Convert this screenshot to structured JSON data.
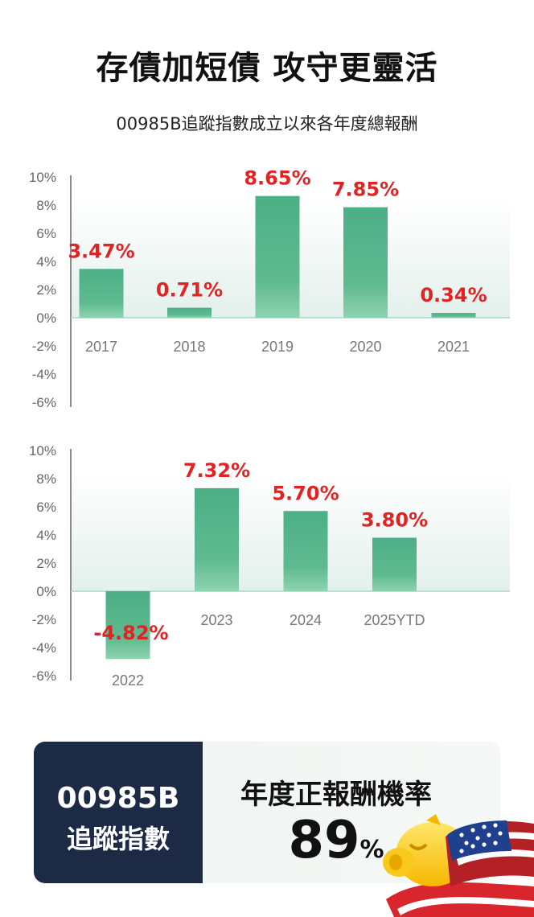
{
  "header": {
    "title": "存債加短債  攻守更靈活",
    "subtitle": "00985B追蹤指數成立以來各年度總報酬"
  },
  "chart_data": [
    {
      "type": "bar",
      "categories": [
        "2017",
        "2018",
        "2019",
        "2020",
        "2021"
      ],
      "values": [
        3.47,
        0.71,
        8.65,
        7.85,
        0.34
      ],
      "value_labels": [
        "3.47%",
        "0.71%",
        "8.65%",
        "7.85%",
        "0.34%"
      ],
      "y_ticks": [
        "10%",
        "8%",
        "6%",
        "4%",
        "2%",
        "0%",
        "-2%",
        "-4%",
        "-6%"
      ],
      "ylim": [
        -6,
        10
      ],
      "bar_color": "#4caf86",
      "label_color": "#e02424"
    },
    {
      "type": "bar",
      "categories": [
        "2022",
        "2023",
        "2024",
        "2025YTD"
      ],
      "values": [
        -4.82,
        7.32,
        5.7,
        3.8
      ],
      "value_labels": [
        "-4.82%",
        "7.32%",
        "5.70%",
        "3.80%"
      ],
      "y_ticks": [
        "10%",
        "8%",
        "6%",
        "4%",
        "2%",
        "0%",
        "-2%",
        "-4%",
        "-6%"
      ],
      "ylim": [
        -6,
        10
      ],
      "bar_color": "#4caf86",
      "label_color": "#e02424"
    }
  ],
  "summary": {
    "code": "00985B",
    "name": "追蹤指數",
    "label": "年度正報酬機率",
    "rate_value": "89",
    "rate_unit": "%"
  },
  "colors": {
    "card_dark": "#1c2a45",
    "accent_red": "#e02424",
    "bar_green": "#4caf86"
  },
  "decoration": {
    "icon": "piggy-bank-with-us-flag-icon"
  }
}
